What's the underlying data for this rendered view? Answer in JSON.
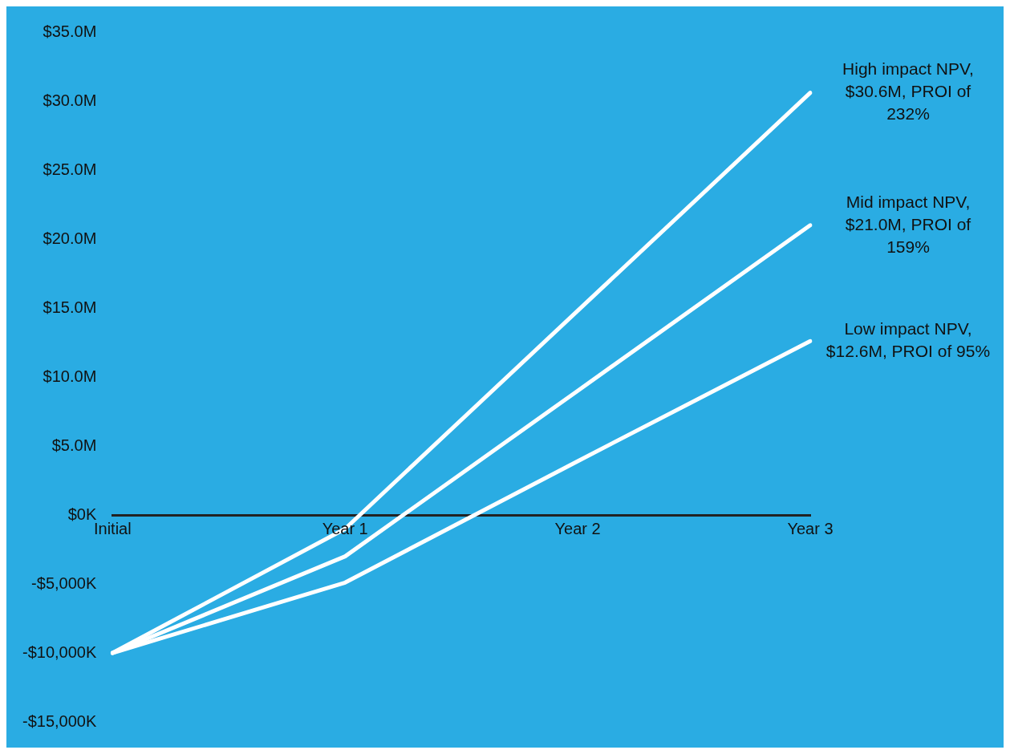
{
  "chart_data": {
    "type": "line",
    "categories": [
      "Initial",
      "Year 1",
      "Year 2",
      "Year 3"
    ],
    "series": [
      {
        "color": "#ffffff",
        "values": [
          -10000000,
          -1000000,
          14800000,
          30600000
        ]
      },
      {
        "color": "#ffffff",
        "values": [
          -10000000,
          -3000000,
          9000000,
          21000000
        ]
      },
      {
        "color": "#ffffff",
        "values": [
          -10000000,
          -4900000,
          3900000,
          12600000
        ]
      }
    ],
    "ylim": [
      -15000000,
      35000000
    ],
    "yticks": [
      {
        "value": -15000000,
        "label": "-$15,000K"
      },
      {
        "value": -10000000,
        "label": "-$10,000K"
      },
      {
        "value": -5000000,
        "label": "-$5,000K"
      },
      {
        "value": 0,
        "label": "$0K"
      },
      {
        "value": 5000000,
        "label": "$5.0M"
      },
      {
        "value": 10000000,
        "label": "$10.0M"
      },
      {
        "value": 15000000,
        "label": "$15.0M"
      },
      {
        "value": 20000000,
        "label": "$20.0M"
      },
      {
        "value": 25000000,
        "label": "$25.0M"
      },
      {
        "value": 30000000,
        "label": "$30.0M"
      },
      {
        "value": 35000000,
        "label": "$35.0M"
      }
    ],
    "annotations": [
      {
        "text": "High impact NPV,\n$30.6M, PROI of\n232%",
        "x": "Year 3",
        "y": 30600000
      },
      {
        "text": "Mid impact NPV,\n$21.0M, PROI of\n159%",
        "x": "Year 3",
        "y": 21000000
      },
      {
        "text": "Low impact NPV,\n$12.6M, PROI of 95%",
        "x": "Year 3",
        "y": 12600000
      }
    ],
    "grid": false,
    "legend": false,
    "marker": "none",
    "line_style": "solid"
  }
}
